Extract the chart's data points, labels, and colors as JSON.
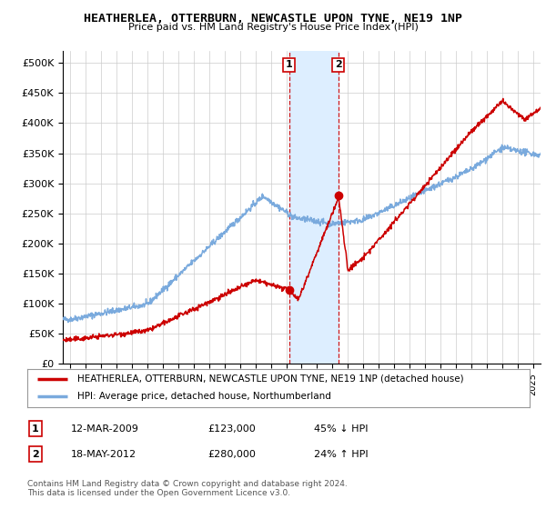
{
  "title": "HEATHERLEA, OTTERBURN, NEWCASTLE UPON TYNE, NE19 1NP",
  "subtitle": "Price paid vs. HM Land Registry's House Price Index (HPI)",
  "ylabel_ticks": [
    "£0",
    "£50K",
    "£100K",
    "£150K",
    "£200K",
    "£250K",
    "£300K",
    "£350K",
    "£400K",
    "£450K",
    "£500K"
  ],
  "ytick_vals": [
    0,
    50000,
    100000,
    150000,
    200000,
    250000,
    300000,
    350000,
    400000,
    450000,
    500000
  ],
  "ylim": [
    0,
    520000
  ],
  "xlim_start": 1994.5,
  "xlim_end": 2025.5,
  "sale1_x": 2009.19,
  "sale1_y": 123000,
  "sale1_label": "1",
  "sale2_x": 2012.38,
  "sale2_y": 280000,
  "sale2_label": "2",
  "highlight_color": "#ddeeff",
  "red_line_color": "#cc0000",
  "blue_line_color": "#7aaadd",
  "legend1_text": "HEATHERLEA, OTTERBURN, NEWCASTLE UPON TYNE, NE19 1NP (detached house)",
  "legend2_text": "HPI: Average price, detached house, Northumberland",
  "table_row1": [
    "1",
    "12-MAR-2009",
    "£123,000",
    "45% ↓ HPI"
  ],
  "table_row2": [
    "2",
    "18-MAY-2012",
    "£280,000",
    "24% ↑ HPI"
  ],
  "footnote": "Contains HM Land Registry data © Crown copyright and database right 2024.\nThis data is licensed under the Open Government Licence v3.0.",
  "background_color": "#ffffff",
  "grid_color": "#cccccc"
}
